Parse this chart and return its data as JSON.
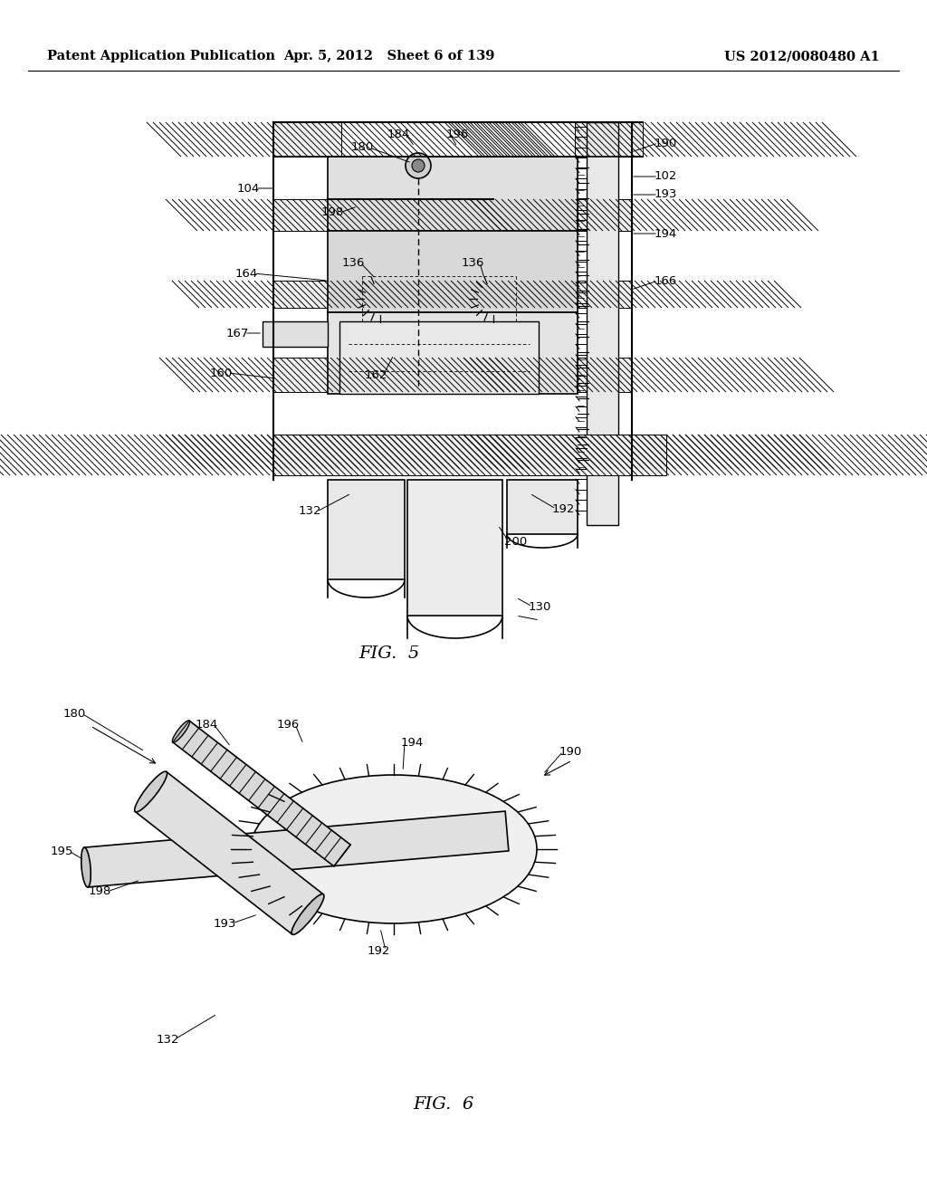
{
  "background_color": "#ffffff",
  "header_left": "Patent Application Publication",
  "header_center": "Apr. 5, 2012   Sheet 6 of 139",
  "header_right": "US 2012/0080480 A1",
  "header_fontsize": 10.5,
  "fig5_caption": "FIG.  5",
  "fig6_caption": "FIG.  6",
  "label_fontsize": 9.5,
  "caption_fontsize": 14
}
